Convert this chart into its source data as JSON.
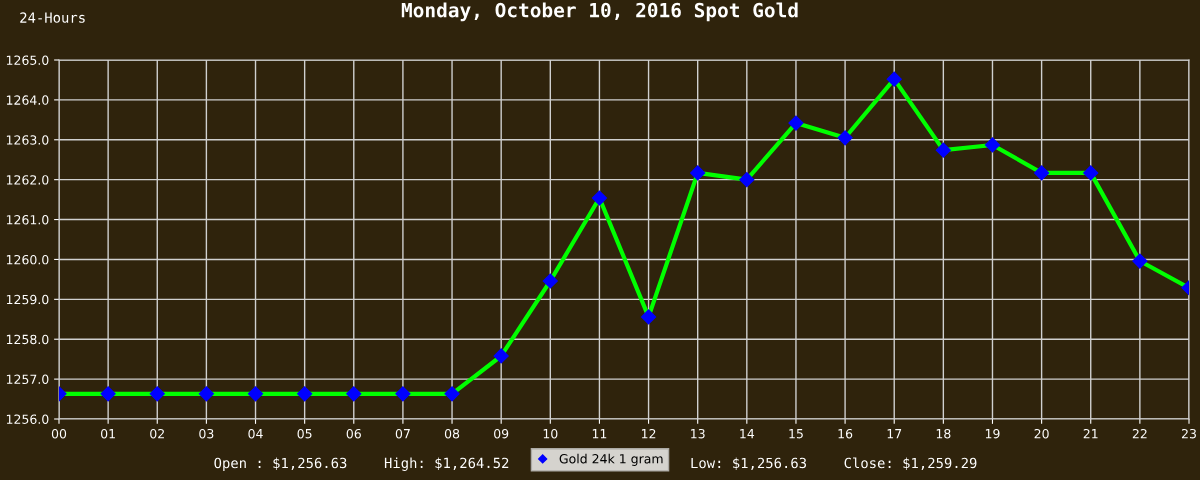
{
  "chart_data": {
    "type": "line",
    "title": "Monday, October 10, 2016 Spot Gold",
    "annotations": [
      "24-Hours",
      "Open : $1,256.63",
      "High: $1,264.52",
      "Low: $1,256.63",
      "Close: $1,259.29"
    ],
    "categories": [
      "00",
      "01",
      "02",
      "03",
      "04",
      "05",
      "06",
      "07",
      "08",
      "09",
      "10",
      "11",
      "12",
      "13",
      "14",
      "15",
      "16",
      "17",
      "18",
      "19",
      "20",
      "21",
      "22",
      "23"
    ],
    "series": [
      {
        "name": "Gold 24k 1 gram",
        "color": "#00ff00",
        "values": [
          1256.63,
          1256.63,
          1256.63,
          1256.63,
          1256.63,
          1256.63,
          1256.63,
          1256.63,
          1256.63,
          1257.58,
          1259.46,
          1261.54,
          1258.56,
          1262.17,
          1262.0,
          1263.42,
          1263.05,
          1264.52,
          1262.74,
          1262.87,
          1262.17,
          1262.17,
          1259.96,
          1259.29
        ]
      }
    ],
    "ylim": [
      1256.0,
      1265.0
    ],
    "yticks": [
      {
        "value": 1256,
        "label": "1256.0"
      },
      {
        "value": 1257,
        "label": "1257.0"
      },
      {
        "value": 1258,
        "label": "1258.0"
      },
      {
        "value": 1259,
        "label": "1259.0"
      },
      {
        "value": 1260,
        "label": "1260.0"
      },
      {
        "value": 1261,
        "label": "1261.0"
      },
      {
        "value": 1262,
        "label": "1262.0"
      },
      {
        "value": 1263,
        "label": "1263.0"
      },
      {
        "value": 1264,
        "label": "1264.0"
      },
      {
        "value": 1265,
        "label": "1265.0"
      }
    ],
    "grid": true,
    "legend": "bottom",
    "marker": "diamond",
    "line_style": "solid"
  }
}
